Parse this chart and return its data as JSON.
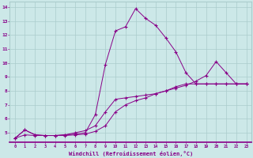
{
  "xlabel": "Windchill (Refroidissement éolien,°C)",
  "background_color": "#cce8e8",
  "line_color": "#880088",
  "grid_color": "#aacccc",
  "xlim": [
    -0.5,
    23.5
  ],
  "ylim": [
    4.3,
    14.4
  ],
  "xticks": [
    0,
    1,
    2,
    3,
    4,
    5,
    6,
    7,
    8,
    9,
    10,
    11,
    12,
    13,
    14,
    15,
    16,
    17,
    18,
    19,
    20,
    21,
    22,
    23
  ],
  "yticks": [
    5,
    6,
    7,
    8,
    9,
    10,
    11,
    12,
    13,
    14
  ],
  "series": [
    {
      "x": [
        0,
        1,
        2,
        3,
        4,
        5,
        6,
        7,
        8,
        9,
        10,
        11,
        12,
        13,
        14,
        15,
        16,
        17,
        18,
        19,
        20,
        21,
        22,
        23
      ],
      "y": [
        4.6,
        5.2,
        4.85,
        4.8,
        4.8,
        4.85,
        4.9,
        5.0,
        6.3,
        9.9,
        12.3,
        12.6,
        13.9,
        13.2,
        12.7,
        11.8,
        10.8,
        9.3,
        8.5,
        8.5,
        8.5,
        8.5,
        8.5,
        8.5
      ]
    },
    {
      "x": [
        0,
        1,
        2,
        3,
        4,
        5,
        6,
        7,
        8,
        9,
        10,
        11,
        12,
        13,
        14,
        15,
        16,
        17,
        18,
        19,
        20,
        21,
        22,
        23
      ],
      "y": [
        4.6,
        5.2,
        4.85,
        4.8,
        4.8,
        4.85,
        5.0,
        5.15,
        5.5,
        6.5,
        7.4,
        7.5,
        7.6,
        7.7,
        7.8,
        8.0,
        8.2,
        8.4,
        8.7,
        9.1,
        10.1,
        9.3,
        8.5,
        8.5
      ]
    },
    {
      "x": [
        0,
        1,
        2,
        3,
        4,
        5,
        6,
        7,
        8,
        9,
        10,
        11,
        12,
        13,
        14,
        15,
        16,
        17,
        18,
        19,
        20,
        21,
        22,
        23
      ],
      "y": [
        4.6,
        4.85,
        4.8,
        4.8,
        4.8,
        4.8,
        4.85,
        4.9,
        5.1,
        5.5,
        6.5,
        7.0,
        7.3,
        7.5,
        7.8,
        8.0,
        8.3,
        8.5,
        8.5,
        8.5,
        8.5,
        8.5,
        8.5,
        8.5
      ]
    }
  ]
}
